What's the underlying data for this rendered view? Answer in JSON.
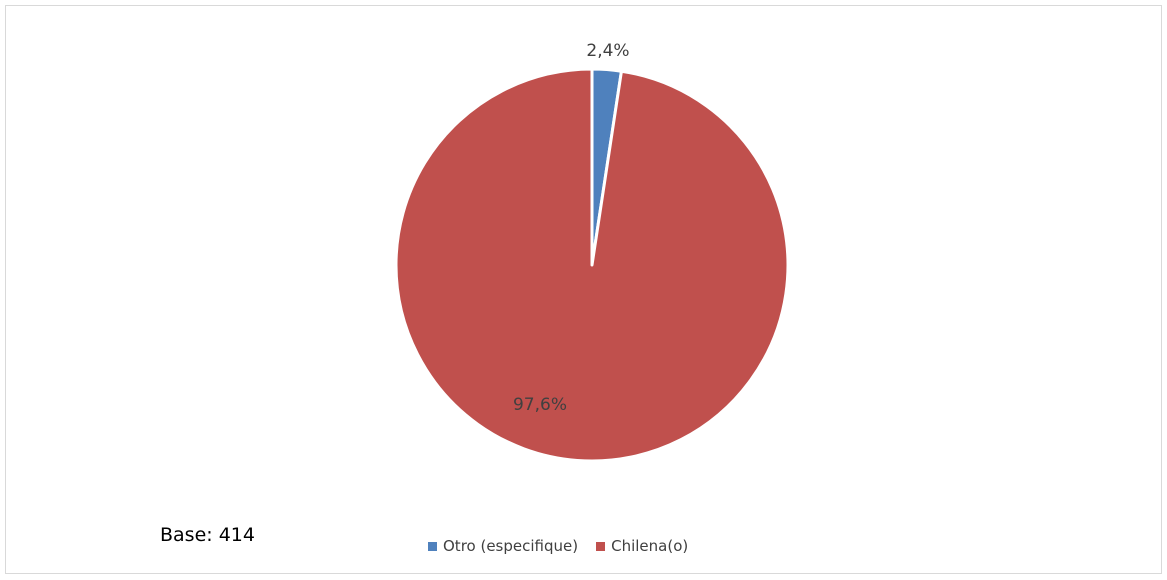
{
  "chart_data": {
    "type": "pie",
    "title": "",
    "slices": [
      {
        "label": "Otro (especifique)",
        "value": 2.4,
        "display": "2,4%",
        "color": "#4f81bd"
      },
      {
        "label": "Chilena(o)",
        "value": 97.6,
        "display": "97,6%",
        "color": "#c0504d"
      }
    ],
    "legend_position": "bottom",
    "note": "Base: 414"
  }
}
